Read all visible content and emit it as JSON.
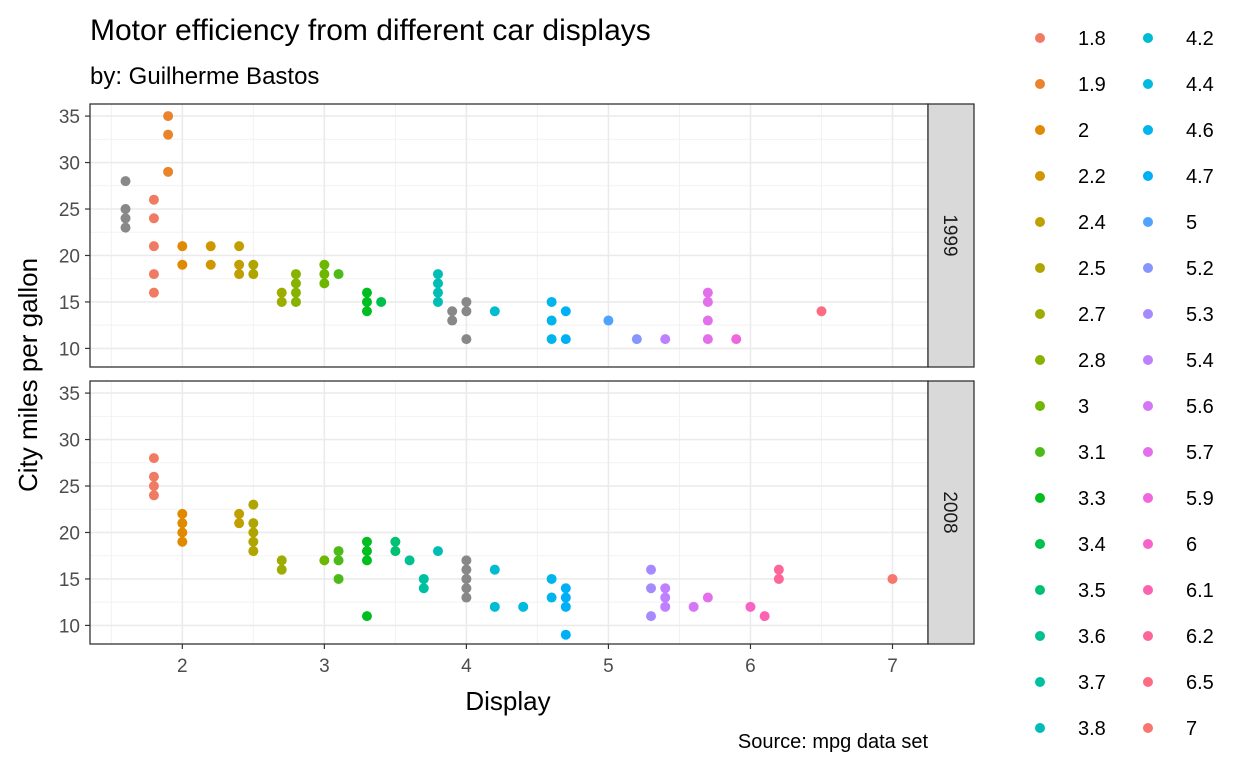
{
  "chart_data": {
    "type": "scatter",
    "title": "Motor efficiency from different car displays",
    "subtitle": "by: Guilherme Bastos",
    "caption": "Source: mpg data set",
    "xlabel": "Display",
    "ylabel": "City miles per gallon",
    "xlim": [
      1.35,
      7.25
    ],
    "ylim": [
      8.0,
      36.3
    ],
    "x_ticks": [
      2,
      3,
      4,
      5,
      6,
      7
    ],
    "y_ticks": [
      10,
      15,
      20,
      25,
      30,
      35
    ],
    "grid": true,
    "legend_position": "right",
    "legend_columns": 2,
    "legend": [
      {
        "label": "1.8",
        "color": "#F07B63"
      },
      {
        "label": "1.9",
        "color": "#E9842C"
      },
      {
        "label": "2",
        "color": "#DF8A00"
      },
      {
        "label": "2.2",
        "color": "#D19500"
      },
      {
        "label": "2.4",
        "color": "#C19F00"
      },
      {
        "label": "2.5",
        "color": "#B0A500"
      },
      {
        "label": "2.7",
        "color": "#9CAC00"
      },
      {
        "label": "2.8",
        "color": "#87B200"
      },
      {
        "label": "3",
        "color": "#6DB700"
      },
      {
        "label": "3.1",
        "color": "#4CBB17"
      },
      {
        "label": "3.3",
        "color": "#00BE1F"
      },
      {
        "label": "3.4",
        "color": "#00BF4D"
      },
      {
        "label": "3.5",
        "color": "#00C072"
      },
      {
        "label": "3.6",
        "color": "#00C08D"
      },
      {
        "label": "3.7",
        "color": "#00C0A2"
      },
      {
        "label": "3.8",
        "color": "#00BEB6"
      },
      {
        "label": "4.2",
        "color": "#00BCD3"
      },
      {
        "label": "4.4",
        "color": "#00BADF"
      },
      {
        "label": "4.6",
        "color": "#00B5EC"
      },
      {
        "label": "4.7",
        "color": "#00B0F6"
      },
      {
        "label": "5",
        "color": "#4FA3FF"
      },
      {
        "label": "5.2",
        "color": "#8596FF"
      },
      {
        "label": "5.3",
        "color": "#A58AFF"
      },
      {
        "label": "5.4",
        "color": "#BE80FF"
      },
      {
        "label": "5.6",
        "color": "#D476F5"
      },
      {
        "label": "5.7",
        "color": "#E46FEA"
      },
      {
        "label": "5.9",
        "color": "#F066DC"
      },
      {
        "label": "6",
        "color": "#F863C7"
      },
      {
        "label": "6.1",
        "color": "#FD61B2"
      },
      {
        "label": "6.2",
        "color": "#FE659A"
      },
      {
        "label": "6.5",
        "color": "#FC6D83"
      },
      {
        "label": "7",
        "color": "#F8766D"
      }
    ],
    "facets": [
      {
        "label": "1999",
        "points": [
          [
            1.6,
            28
          ],
          [
            1.6,
            25
          ],
          [
            1.6,
            24
          ],
          [
            1.6,
            23
          ],
          [
            1.8,
            26
          ],
          [
            1.8,
            24
          ],
          [
            1.8,
            21
          ],
          [
            1.8,
            18
          ],
          [
            1.8,
            16
          ],
          [
            1.9,
            35
          ],
          [
            1.9,
            33
          ],
          [
            1.9,
            29
          ],
          [
            2.0,
            21
          ],
          [
            2.0,
            19
          ],
          [
            2.2,
            21
          ],
          [
            2.2,
            19
          ],
          [
            2.4,
            21
          ],
          [
            2.4,
            19
          ],
          [
            2.4,
            18
          ],
          [
            2.5,
            19
          ],
          [
            2.5,
            18
          ],
          [
            2.7,
            16
          ],
          [
            2.7,
            15
          ],
          [
            2.8,
            18
          ],
          [
            2.8,
            17
          ],
          [
            2.8,
            16
          ],
          [
            2.8,
            15
          ],
          [
            3.0,
            19
          ],
          [
            3.0,
            18
          ],
          [
            3.0,
            17
          ],
          [
            3.1,
            18
          ],
          [
            3.3,
            16
          ],
          [
            3.3,
            15
          ],
          [
            3.3,
            14
          ],
          [
            3.4,
            15
          ],
          [
            3.8,
            18
          ],
          [
            3.8,
            17
          ],
          [
            3.8,
            16
          ],
          [
            3.8,
            15
          ],
          [
            3.9,
            14
          ],
          [
            3.9,
            13
          ],
          [
            4.0,
            15
          ],
          [
            4.0,
            14
          ],
          [
            4.0,
            11
          ],
          [
            4.2,
            14
          ],
          [
            4.6,
            15
          ],
          [
            4.6,
            13
          ],
          [
            4.6,
            11
          ],
          [
            4.7,
            14
          ],
          [
            4.7,
            11
          ],
          [
            5.0,
            13
          ],
          [
            5.2,
            11
          ],
          [
            5.4,
            11
          ],
          [
            5.7,
            16
          ],
          [
            5.7,
            15
          ],
          [
            5.7,
            13
          ],
          [
            5.7,
            11
          ],
          [
            5.9,
            11
          ],
          [
            6.5,
            14
          ]
        ]
      },
      {
        "label": "2008",
        "points": [
          [
            1.8,
            28
          ],
          [
            1.8,
            26
          ],
          [
            1.8,
            25
          ],
          [
            1.8,
            24
          ],
          [
            2.0,
            22
          ],
          [
            2.0,
            21
          ],
          [
            2.0,
            20
          ],
          [
            2.0,
            19
          ],
          [
            2.4,
            22
          ],
          [
            2.4,
            21
          ],
          [
            2.5,
            23
          ],
          [
            2.5,
            21
          ],
          [
            2.5,
            20
          ],
          [
            2.5,
            19
          ],
          [
            2.5,
            18
          ],
          [
            2.7,
            17
          ],
          [
            2.7,
            16
          ],
          [
            3.0,
            17
          ],
          [
            3.1,
            18
          ],
          [
            3.1,
            17
          ],
          [
            3.1,
            15
          ],
          [
            3.3,
            19
          ],
          [
            3.3,
            18
          ],
          [
            3.3,
            17
          ],
          [
            3.3,
            11
          ],
          [
            3.5,
            19
          ],
          [
            3.5,
            18
          ],
          [
            3.6,
            17
          ],
          [
            3.7,
            15
          ],
          [
            3.7,
            14
          ],
          [
            3.8,
            18
          ],
          [
            4.0,
            17
          ],
          [
            4.0,
            16
          ],
          [
            4.0,
            15
          ],
          [
            4.0,
            14
          ],
          [
            4.0,
            13
          ],
          [
            4.2,
            16
          ],
          [
            4.2,
            12
          ],
          [
            4.4,
            12
          ],
          [
            4.6,
            15
          ],
          [
            4.6,
            13
          ],
          [
            4.7,
            14
          ],
          [
            4.7,
            13
          ],
          [
            4.7,
            12
          ],
          [
            4.7,
            9
          ],
          [
            5.3,
            16
          ],
          [
            5.3,
            14
          ],
          [
            5.3,
            11
          ],
          [
            5.4,
            14
          ],
          [
            5.4,
            13
          ],
          [
            5.4,
            12
          ],
          [
            5.6,
            12
          ],
          [
            5.7,
            13
          ],
          [
            6.0,
            12
          ],
          [
            6.1,
            11
          ],
          [
            6.2,
            16
          ],
          [
            6.2,
            15
          ],
          [
            7.0,
            15
          ]
        ]
      }
    ]
  }
}
